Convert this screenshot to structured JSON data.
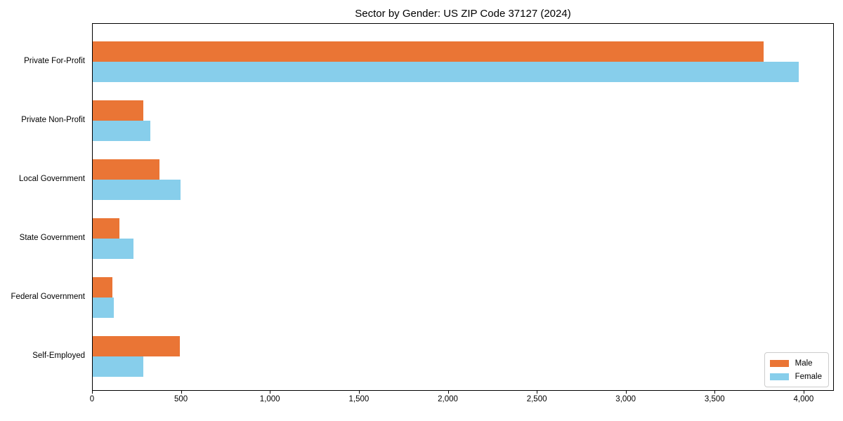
{
  "title": "Sector by Gender: US ZIP Code 37127 (2024)",
  "chart_data": {
    "type": "bar",
    "orientation": "horizontal",
    "title": "Sector by Gender: US ZIP Code 37127 (2024)",
    "categories": [
      "Private For-Profit",
      "Private Non-Profit",
      "Local Government",
      "State Government",
      "Federal Government",
      "Self-Employed"
    ],
    "series": [
      {
        "name": "Male",
        "color": "#ea7535",
        "values": [
          3770,
          285,
          375,
          150,
          110,
          490
        ]
      },
      {
        "name": "Female",
        "color": "#87ceeb",
        "values": [
          3970,
          325,
          495,
          230,
          120,
          285
        ]
      }
    ],
    "xlabel": "",
    "ylabel": "",
    "xlim": [
      0,
      4170
    ],
    "x_ticks": [
      0,
      500,
      1000,
      1500,
      2000,
      2500,
      3000,
      3500,
      4000
    ],
    "x_tick_labels": [
      "0",
      "500",
      "1,000",
      "1,500",
      "2,000",
      "2,500",
      "3,000",
      "3,500",
      "4,000"
    ],
    "grid": false,
    "legend": {
      "position": "lower right",
      "entries": [
        "Male",
        "Female"
      ]
    }
  }
}
